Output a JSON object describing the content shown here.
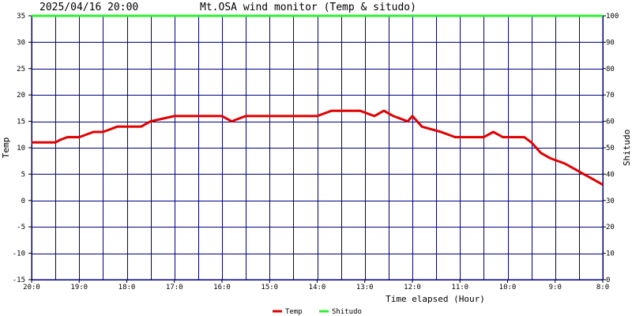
{
  "header": {
    "timestamp": "2025/04/16 20:00",
    "title": "Mt.OSA wind monitor (Temp & situdo)"
  },
  "chart_data": {
    "type": "line",
    "title": "Mt.OSA wind monitor (Temp & situdo)",
    "xlabel": "Time elapsed (Hour)",
    "ylabel_left": "Temp",
    "ylabel_right": "Shitudo",
    "ylim_left": [
      -15,
      35
    ],
    "ylim_right": [
      0,
      100
    ],
    "yticks_left": [
      "35",
      "30",
      "25",
      "20",
      "15",
      "10",
      "5",
      "0",
      "-5",
      "-10",
      "-15"
    ],
    "yticks_right": [
      "100",
      "90",
      "80",
      "70",
      "60",
      "50",
      "40",
      "30",
      "20",
      "10",
      "0"
    ],
    "x_range_hours": [
      0,
      12
    ],
    "x_direction": "hours elapsed from left to right; clock time decreases",
    "xticks": [
      {
        "label": "20:0",
        "hour": 0
      },
      {
        "label": "19:0",
        "hour": 1
      },
      {
        "label": "18:0",
        "hour": 2
      },
      {
        "label": "17:0",
        "hour": 3
      },
      {
        "label": "16:0",
        "hour": 4
      },
      {
        "label": "15:0",
        "hour": 5
      },
      {
        "label": "14:0",
        "hour": 6
      },
      {
        "label": "13:0",
        "hour": 7
      },
      {
        "label": "12:0",
        "hour": 8
      },
      {
        "label": "11:0",
        "hour": 9
      },
      {
        "label": "10:0",
        "hour": 10
      },
      {
        "label": "9:0",
        "hour": 11
      },
      {
        "label": "8:0",
        "hour": 12
      }
    ],
    "grid": true,
    "legend_position": "bottom-center",
    "series": [
      {
        "name": "Temp",
        "axis": "left",
        "color": "#e00000",
        "x": [
          0,
          0.5,
          0.6,
          0.75,
          1.0,
          1.3,
          1.5,
          1.8,
          2.3,
          2.5,
          3.0,
          3.6,
          4.0,
          4.2,
          4.5,
          6.0,
          6.3,
          6.6,
          6.9,
          7.2,
          7.4,
          7.6,
          7.9,
          8.0,
          8.2,
          8.6,
          8.9,
          9.5,
          9.7,
          9.9,
          10.35,
          10.5,
          10.7,
          10.9,
          11.2,
          11.4,
          11.6,
          11.8,
          12.0
        ],
        "values": [
          11,
          11,
          11.5,
          12,
          12,
          13,
          13,
          14,
          14,
          15,
          16,
          16,
          16,
          15,
          16,
          16,
          17,
          17,
          17,
          16,
          17,
          16,
          15,
          16,
          14,
          13,
          12,
          12,
          13,
          12,
          12,
          11,
          9,
          8,
          7,
          6,
          5,
          4,
          3
        ]
      },
      {
        "name": "Shitudo",
        "axis": "right",
        "color": "#33ee33",
        "x": [
          0,
          12
        ],
        "values": [
          100,
          100
        ]
      }
    ]
  }
}
